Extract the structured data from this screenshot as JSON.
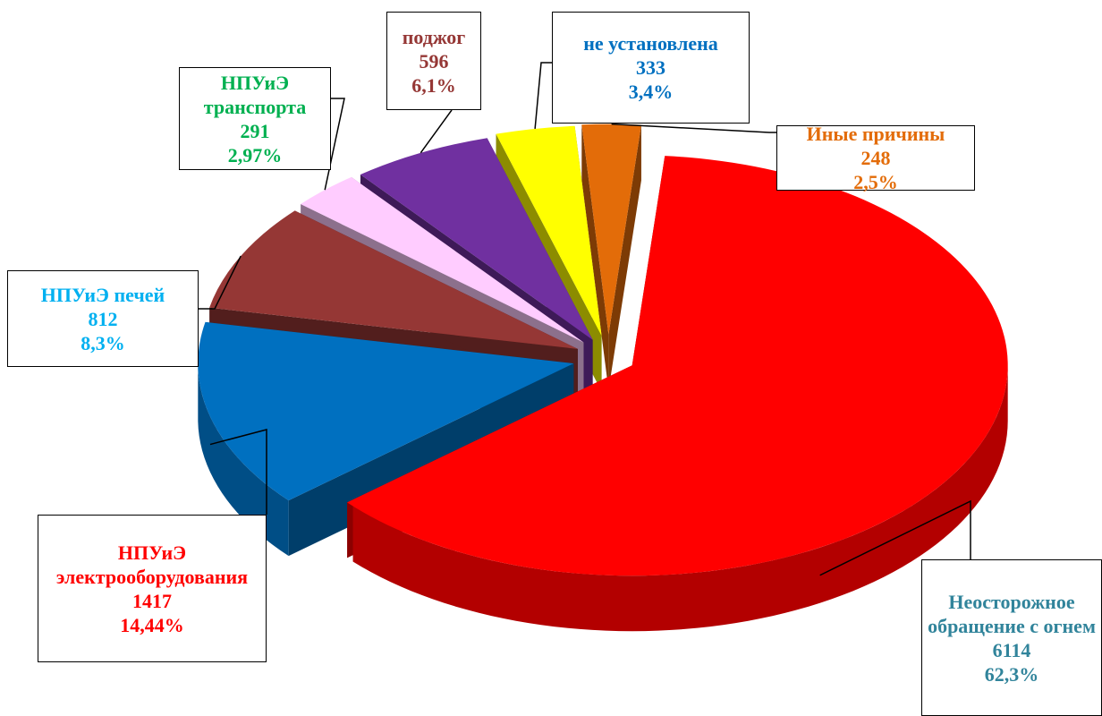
{
  "chart_data": {
    "type": "pie3d",
    "categories": [
      "Неосторожное обращение с огнем",
      "НПУиЭ электрооборудования",
      "НПУиЭ печей",
      "НПУиЭ транспорта",
      "поджог",
      "не установлена",
      "Иные причины"
    ],
    "values": [
      6114,
      1417,
      812,
      291,
      596,
      333,
      248
    ],
    "percent_labels": [
      "62,3%",
      "14,44%",
      "8,3%",
      "2,97%",
      "6,1%",
      "3,4%",
      "2,5%"
    ],
    "colors": [
      "#ff0000",
      "#0070c0",
      "#953735",
      "#ffccff",
      "#7030a0",
      "#ffff00",
      "#e36c09"
    ],
    "label_colors": [
      "#31849b",
      "#ff0000",
      "#00b0f0",
      "#00b050",
      "#953735",
      "#0070c0",
      "#e36c09"
    ]
  }
}
